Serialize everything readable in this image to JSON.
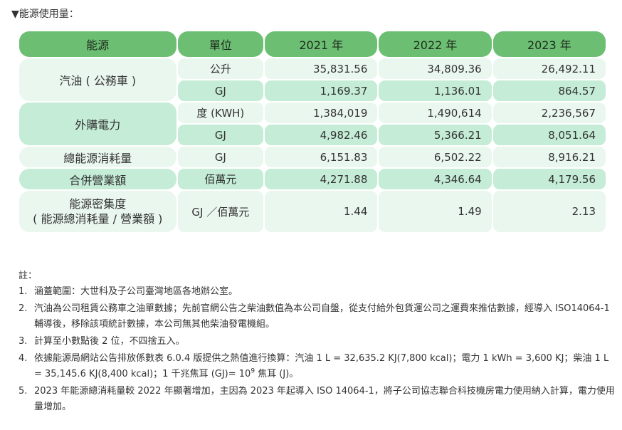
{
  "heading": "▼能源使用量：",
  "table": {
    "headers": [
      "能源",
      "單位",
      "2021 年",
      "2022 年",
      "2023 年"
    ],
    "rows": [
      {
        "label": "汽油 ( 公務車 )",
        "unit": "公升",
        "values": [
          "35,831.56",
          "34,809.36",
          "26,492.11"
        ]
      },
      {
        "unit": "GJ",
        "values": [
          "1,169.37",
          "1,136.01",
          "864.57"
        ]
      },
      {
        "label": "外購電力",
        "unit": "度 (KWH)",
        "values": [
          "1,384,019",
          "1,490,614",
          "2,236,567"
        ]
      },
      {
        "unit": "GJ",
        "values": [
          "4,982.46",
          "5,366.21",
          "8,051.64"
        ]
      },
      {
        "label": "總能源消耗量",
        "unit": "GJ",
        "values": [
          "6,151.83",
          "6,502.22",
          "8,916.21"
        ]
      },
      {
        "label": "合併營業額",
        "unit": "佰萬元",
        "values": [
          "4,271.88",
          "4,346.64",
          "4,179.56"
        ]
      },
      {
        "label_line1": "能源密集度",
        "label_line2": "( 能源總消耗量 / 營業額 )",
        "unit": "GJ ／佰萬元",
        "values": [
          "1.44",
          "1.49",
          "2.13"
        ]
      }
    ]
  },
  "notes": {
    "title": "註：",
    "items": [
      {
        "num": "1.",
        "text": "涵蓋範圍：大世科及子公司臺灣地區各地辦公室。"
      },
      {
        "num": "2.",
        "text": "汽油為公司租賃公務車之油單數據；先前官網公告之柴油數值為本公司自盤，從支付給外包貨運公司之運費來推估數據，經導入 ISO14064-1 輔導後，移除該項統計數據，本公司無其他柴油發電機組。"
      },
      {
        "num": "3.",
        "text": "計算至小數點後 2 位，不四捨五入。"
      },
      {
        "num": "4.",
        "text_a": "依據能源局網站公告排放係數表 6.0.4 版提供之熱值進行換算：汽油 1 L = 32,635.2 KJ(7,800 kcal)；電力 1 kWh = 3,600 KJ；柴油 1 L = 35,145.6 KJ(8,400 kcal)；1 千兆焦耳 (GJ)= 10",
        "sup": "9",
        "text_b": " 焦耳 (J)。"
      },
      {
        "num": "5.",
        "text": "2023 年能源總消耗量較 2022 年顯著增加，主因為 2023 年起導入 ISO 14064-1，將子公司協志聯合科技機房電力使用納入計算，電力使用量增加。"
      }
    ]
  }
}
